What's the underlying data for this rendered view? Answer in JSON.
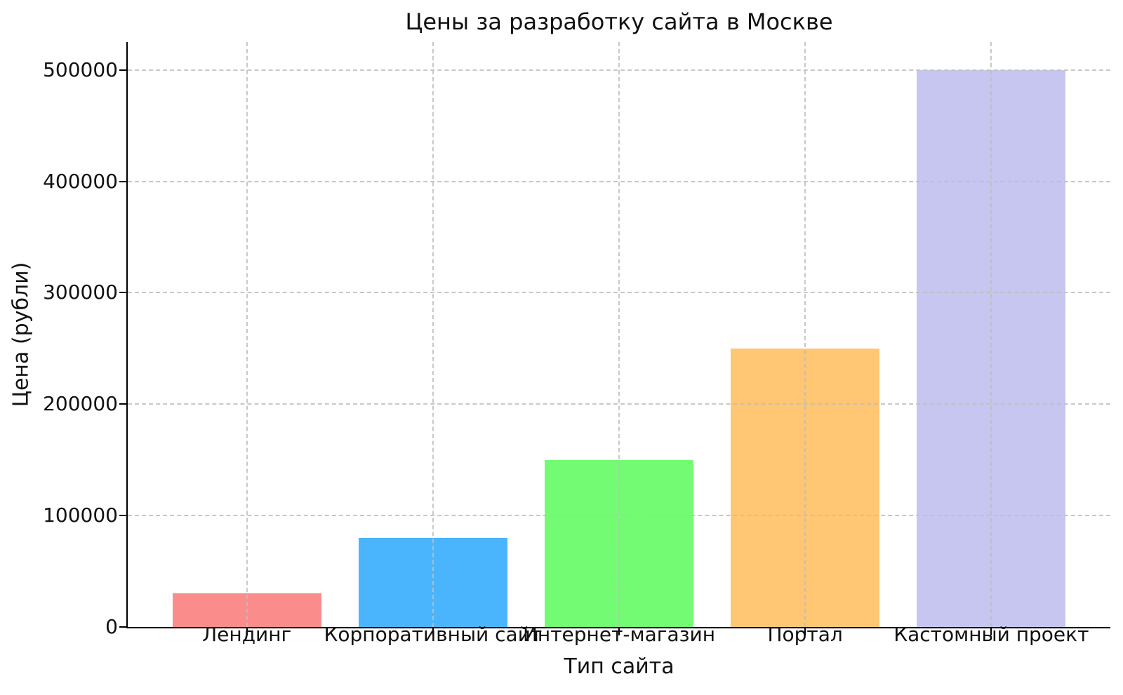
{
  "chart_data": {
    "type": "bar",
    "title": "Цены за разработку сайта в Москве",
    "xlabel": "Тип сайта",
    "ylabel": "Цена (рубли)",
    "categories": [
      "Лендинг",
      "Корпоративный сайт",
      "Интернет-магазин",
      "Портал",
      "Кастомный проект"
    ],
    "values": [
      30000,
      80000,
      150000,
      250000,
      500000
    ],
    "bar_colors": [
      "#fb8c8c",
      "#4ab5fd",
      "#73fb73",
      "#ffc674",
      "#c6c6f1"
    ],
    "yticks": [
      0,
      100000,
      200000,
      300000,
      400000,
      500000
    ],
    "ylim": [
      0,
      525000
    ],
    "grid": {
      "visible": true,
      "style": "dashed",
      "axes": "both",
      "color": "#bebebe",
      "above_bars": true
    },
    "legend_position": "none"
  }
}
